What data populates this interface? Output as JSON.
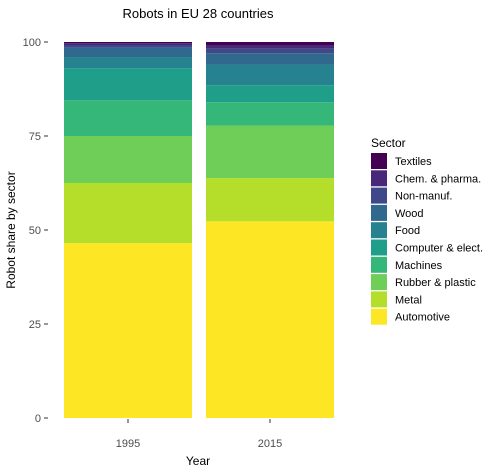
{
  "chart_data": {
    "type": "bar",
    "stacked": true,
    "title": "Robots in EU 28 countries",
    "xlabel": "Year",
    "ylabel": "Robot share by sector",
    "categories": [
      "1995",
      "2015"
    ],
    "ylim": [
      0,
      100
    ],
    "yticks": [
      0,
      25,
      50,
      75,
      100
    ],
    "grid": false,
    "legend_title": "Sector",
    "legend_position": "right",
    "series": [
      {
        "name": "Automotive",
        "color": "#fde725",
        "values": [
          46.5,
          52.3
        ]
      },
      {
        "name": "Metal",
        "color": "#b5de2b",
        "values": [
          16.0,
          11.5
        ]
      },
      {
        "name": "Rubber & plastic",
        "color": "#6ece58",
        "values": [
          12.5,
          14.0
        ]
      },
      {
        "name": "Machines",
        "color": "#35b779",
        "values": [
          9.5,
          6.2
        ]
      },
      {
        "name": "Computer & elect.",
        "color": "#1f9e89",
        "values": [
          8.5,
          4.5
        ]
      },
      {
        "name": "Food",
        "color": "#26828e",
        "values": [
          3.0,
          5.5
        ]
      },
      {
        "name": "Wood",
        "color": "#31688e",
        "values": [
          2.5,
          3.0
        ]
      },
      {
        "name": "Non-manuf.",
        "color": "#3e4989",
        "values": [
          0.7,
          1.2
        ]
      },
      {
        "name": "Chem. & pharma.",
        "color": "#482878",
        "values": [
          0.5,
          1.0
        ]
      },
      {
        "name": "Textiles",
        "color": "#440154",
        "values": [
          0.3,
          0.8
        ]
      }
    ]
  }
}
